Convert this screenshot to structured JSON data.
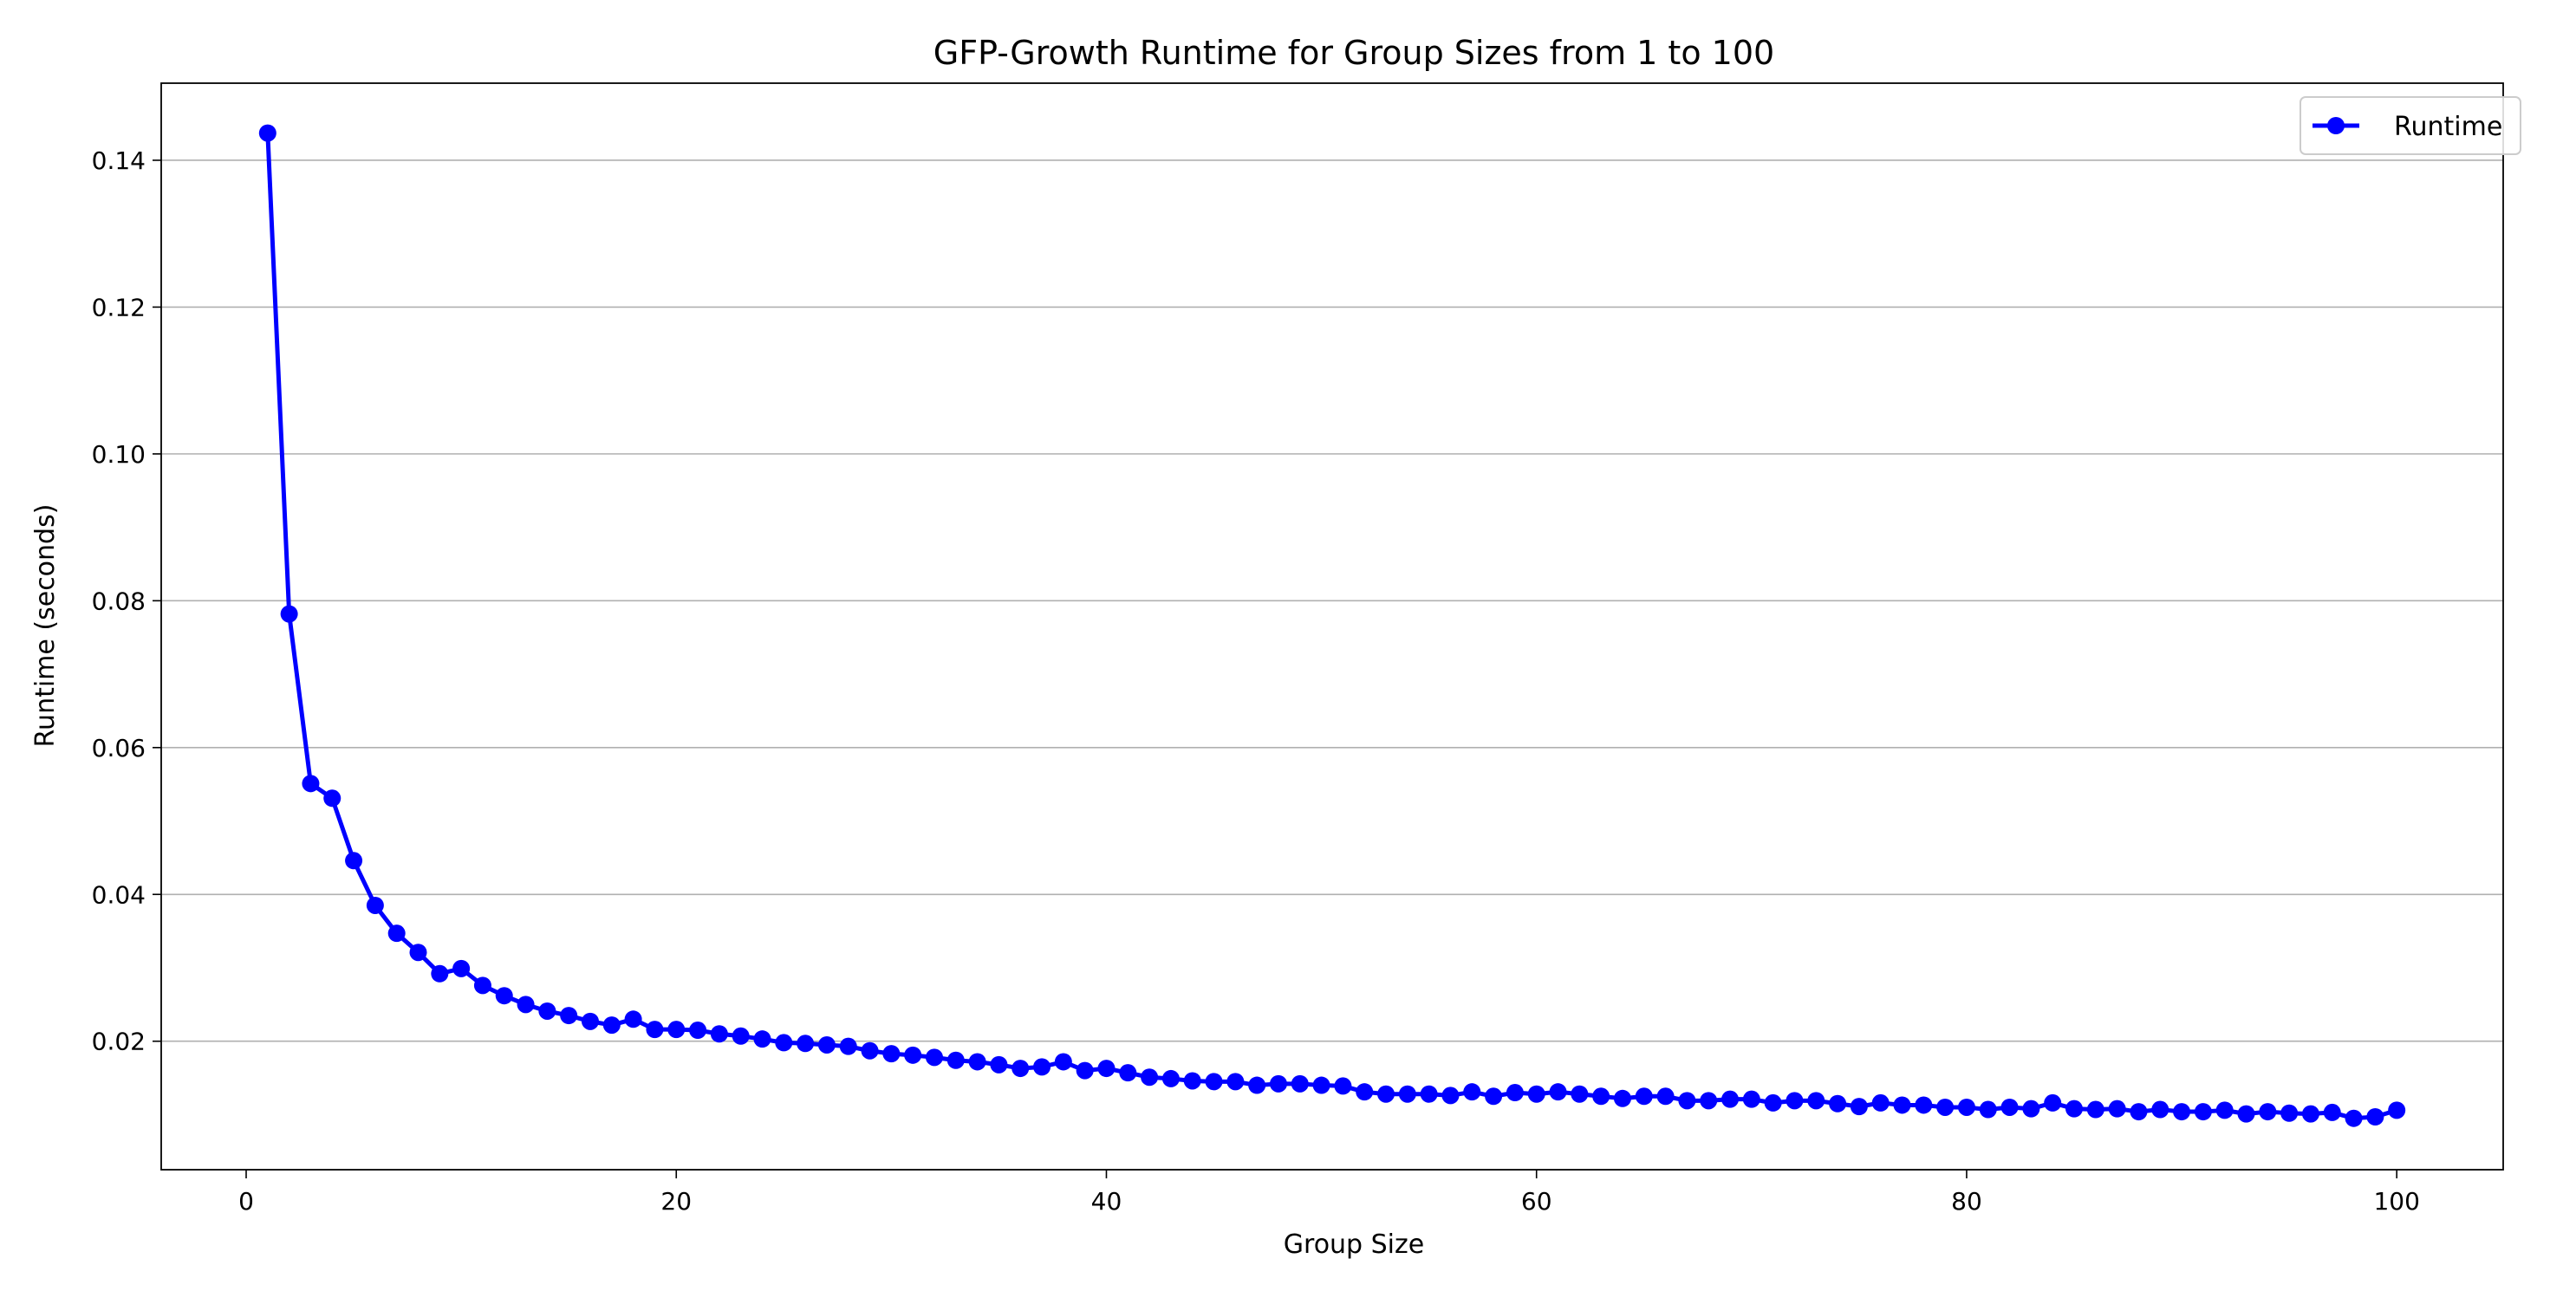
{
  "chart_data": {
    "type": "line",
    "title": "GFP-Growth Runtime for Group Sizes from 1 to 100",
    "xlabel": "Group Size",
    "ylabel": "Runtime (seconds)",
    "xlim": [
      -3.95,
      104.95
    ],
    "ylim": [
      0.0025,
      0.1505
    ],
    "xticks": [
      0,
      20,
      40,
      60,
      80,
      100
    ],
    "xtick_labels": [
      "0",
      "20",
      "40",
      "60",
      "80",
      "100"
    ],
    "yticks": [
      0.02,
      0.04,
      0.06,
      0.08,
      0.1,
      0.12,
      0.14
    ],
    "ytick_labels": [
      "0.02",
      "0.04",
      "0.06",
      "0.08",
      "0.10",
      "0.12",
      "0.14"
    ],
    "grid": "y-axis only",
    "legend_position": "top-right",
    "series": [
      {
        "name": "Runtime",
        "color": "#0000ff",
        "marker": "circle",
        "x": [
          1,
          2,
          3,
          4,
          5,
          6,
          7,
          8,
          9,
          10,
          11,
          12,
          13,
          14,
          15,
          16,
          17,
          18,
          19,
          20,
          21,
          22,
          23,
          24,
          25,
          26,
          27,
          28,
          29,
          30,
          31,
          32,
          33,
          34,
          35,
          36,
          37,
          38,
          39,
          40,
          41,
          42,
          43,
          44,
          45,
          46,
          47,
          48,
          49,
          50,
          51,
          52,
          53,
          54,
          55,
          56,
          57,
          58,
          59,
          60,
          61,
          62,
          63,
          64,
          65,
          66,
          67,
          68,
          69,
          70,
          71,
          72,
          73,
          74,
          75,
          76,
          77,
          78,
          79,
          80,
          81,
          82,
          83,
          84,
          85,
          86,
          87,
          88,
          89,
          90,
          91,
          92,
          93,
          94,
          95,
          96,
          97,
          98,
          99,
          100
        ],
        "y": [
          0.1437,
          0.0782,
          0.0551,
          0.0531,
          0.0446,
          0.0385,
          0.0347,
          0.0321,
          0.0292,
          0.0299,
          0.0276,
          0.0262,
          0.025,
          0.0241,
          0.0235,
          0.0227,
          0.0222,
          0.023,
          0.0216,
          0.0216,
          0.0215,
          0.021,
          0.0207,
          0.0203,
          0.0198,
          0.0197,
          0.0195,
          0.0193,
          0.0187,
          0.0183,
          0.0181,
          0.0178,
          0.0174,
          0.0172,
          0.0168,
          0.0163,
          0.0165,
          0.0172,
          0.016,
          0.0163,
          0.0157,
          0.0151,
          0.0149,
          0.0146,
          0.0145,
          0.0145,
          0.014,
          0.0142,
          0.0142,
          0.014,
          0.0139,
          0.0131,
          0.0128,
          0.0128,
          0.0128,
          0.0126,
          0.0131,
          0.0125,
          0.013,
          0.0128,
          0.0131,
          0.0128,
          0.0125,
          0.0122,
          0.0125,
          0.0125,
          0.0119,
          0.0119,
          0.0121,
          0.0121,
          0.0116,
          0.0119,
          0.0119,
          0.0115,
          0.0111,
          0.0116,
          0.0113,
          0.0113,
          0.011,
          0.011,
          0.0107,
          0.011,
          0.0108,
          0.0116,
          0.0108,
          0.0107,
          0.0108,
          0.0104,
          0.0107,
          0.0104,
          0.0104,
          0.0106,
          0.0101,
          0.0104,
          0.0102,
          0.0101,
          0.0103,
          0.0095,
          0.0097,
          0.0106
        ]
      }
    ]
  }
}
